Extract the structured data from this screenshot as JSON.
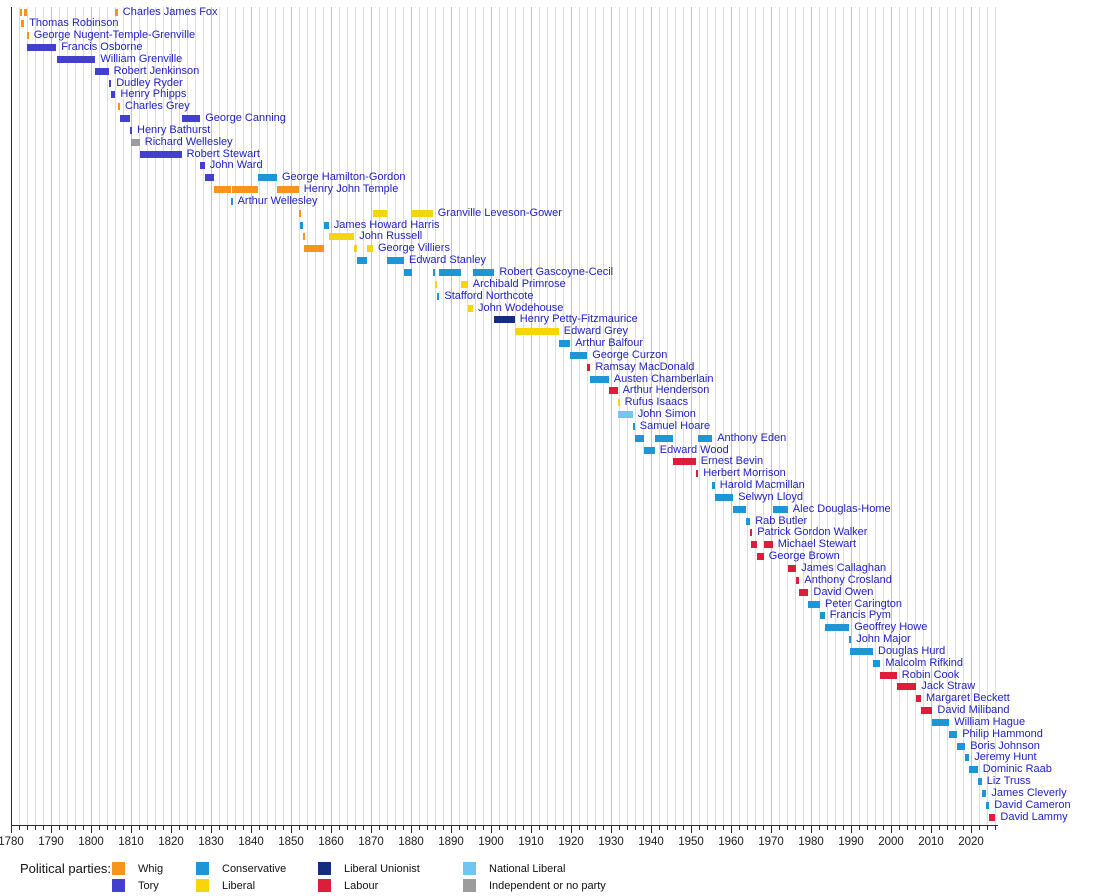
{
  "legend": {
    "heading": "Political parties:",
    "columns": [
      [
        {
          "party": "whig",
          "label": "Whig"
        },
        {
          "party": "tory",
          "label": "Tory"
        }
      ],
      [
        {
          "party": "conservative",
          "label": "Conservative"
        },
        {
          "party": "liberal",
          "label": "Liberal"
        }
      ],
      [
        {
          "party": "liberal_unionist",
          "label": "Liberal Unionist"
        },
        {
          "party": "labour",
          "label": "Labour"
        }
      ],
      [
        {
          "party": "national_liberal",
          "label": "National Liberal"
        },
        {
          "party": "independent",
          "label": "Independent or no party"
        }
      ]
    ]
  },
  "parties": {
    "whig": "#F7941E",
    "tory": "#4340D0",
    "conservative": "#1D96D6",
    "liberal": "#F6D60A",
    "liberal_unionist": "#142E7D",
    "labour": "#DC1E3C",
    "national_liberal": "#6FC6F2",
    "independent": "#9C9C9C"
  },
  "text_colors": {
    "person_label": "#2222BE",
    "axis_label": "#1A1A1A",
    "legend_label": "#111111"
  },
  "axis": {
    "start_year": 1780,
    "end_year": 2026.5,
    "minor_step": 2,
    "major_step": 10,
    "tick_labels": [
      "1780",
      "1790",
      "1800",
      "1810",
      "1820",
      "1830",
      "1840",
      "1850",
      "1860",
      "1870",
      "1880",
      "1890",
      "1900",
      "1910",
      "1920",
      "1930",
      "1940",
      "1950",
      "1960",
      "1970",
      "1980",
      "1990",
      "2000",
      "2010",
      "2020"
    ]
  },
  "chart_data": {
    "type": "timeline",
    "xlabel": "",
    "ylabel": "",
    "grid": "vertical, every 2 years, decades darker",
    "legend_position": "bottom",
    "terms_format": "[start_year, end_year, party_key]",
    "people": [
      {
        "name": "Charles James Fox",
        "terms": [
          [
            1782.2,
            1782.55,
            "whig"
          ],
          [
            1783.3,
            1783.95,
            "whig"
          ],
          [
            1806.1,
            1806.7,
            "whig"
          ]
        ]
      },
      {
        "name": "Thomas Robinson",
        "terms": [
          [
            1782.55,
            1783.3,
            "whig"
          ]
        ]
      },
      {
        "name": "George Nugent-Temple-Grenville",
        "terms": [
          [
            1783.93,
            1784.02,
            "whig"
          ]
        ]
      },
      {
        "name": "Francis Osborne",
        "terms": [
          [
            1783.98,
            1791.3,
            "tory"
          ]
        ]
      },
      {
        "name": "William Grenville",
        "terms": [
          [
            1791.45,
            1801.1,
            "tory"
          ]
        ]
      },
      {
        "name": "Robert Jenkinson",
        "terms": [
          [
            1801.1,
            1804.4,
            "tory"
          ]
        ]
      },
      {
        "name": "Dudley Ryder",
        "terms": [
          [
            1804.4,
            1805.05,
            "tory"
          ]
        ]
      },
      {
        "name": "Henry Phipps",
        "terms": [
          [
            1805.05,
            1806.1,
            "tory"
          ]
        ]
      },
      {
        "name": "Charles Grey",
        "terms": [
          [
            1806.7,
            1807.25,
            "whig"
          ]
        ]
      },
      {
        "name": "George Canning",
        "terms": [
          [
            1807.25,
            1809.75,
            "tory"
          ],
          [
            1822.7,
            1827.3,
            "tory"
          ]
        ]
      },
      {
        "name": "Henry Bathurst",
        "terms": [
          [
            1809.75,
            1809.95,
            "tory"
          ]
        ]
      },
      {
        "name": "Richard Wellesley",
        "terms": [
          [
            1809.95,
            1812.2,
            "independent"
          ]
        ]
      },
      {
        "name": "Robert Stewart",
        "terms": [
          [
            1812.2,
            1822.65,
            "tory"
          ]
        ]
      },
      {
        "name": "John Ward",
        "terms": [
          [
            1827.3,
            1828.45,
            "tory"
          ]
        ]
      },
      {
        "name": "George Hamilton-Gordon",
        "terms": [
          [
            1828.45,
            1830.85,
            "tory"
          ],
          [
            1841.7,
            1846.5,
            "conservative"
          ]
        ]
      },
      {
        "name": "Henry John Temple",
        "terms": [
          [
            1830.85,
            1834.9,
            "whig"
          ],
          [
            1835.3,
            1841.7,
            "whig"
          ],
          [
            1846.5,
            1851.95,
            "whig"
          ]
        ]
      },
      {
        "name": "Arthur Wellesley",
        "terms": [
          [
            1834.9,
            1835.3,
            "conservative"
          ]
        ]
      },
      {
        "name": "Granville Leveson-Gower",
        "terms": [
          [
            1851.95,
            1852.15,
            "whig"
          ],
          [
            1870.5,
            1874.1,
            "liberal"
          ],
          [
            1880.3,
            1885.45,
            "liberal"
          ]
        ]
      },
      {
        "name": "James Howard Harris",
        "terms": [
          [
            1852.15,
            1852.95,
            "conservative"
          ],
          [
            1858.15,
            1859.45,
            "conservative"
          ]
        ]
      },
      {
        "name": "John Russell",
        "terms": [
          [
            1852.95,
            1853.15,
            "whig"
          ],
          [
            1859.45,
            1865.8,
            "liberal"
          ]
        ]
      },
      {
        "name": "George Villiers",
        "terms": [
          [
            1853.15,
            1858.15,
            "whig"
          ],
          [
            1865.8,
            1866.5,
            "liberal"
          ],
          [
            1868.95,
            1870.5,
            "liberal"
          ]
        ]
      },
      {
        "name": "Edward Stanley",
        "terms": [
          [
            1866.5,
            1868.95,
            "conservative"
          ],
          [
            1874.1,
            1878.25,
            "conservative"
          ]
        ]
      },
      {
        "name": "Robert Gascoyne-Cecil",
        "terms": [
          [
            1878.25,
            1880.3,
            "conservative"
          ],
          [
            1885.45,
            1886.1,
            "conservative"
          ],
          [
            1887.05,
            1892.6,
            "conservative"
          ],
          [
            1895.5,
            1900.85,
            "conservative"
          ]
        ]
      },
      {
        "name": "Archibald Primrose",
        "terms": [
          [
            1886.1,
            1886.6,
            "liberal"
          ],
          [
            1892.6,
            1894.2,
            "liberal"
          ]
        ]
      },
      {
        "name": "Stafford Northcote",
        "terms": [
          [
            1886.6,
            1887.05,
            "conservative"
          ]
        ]
      },
      {
        "name": "John Wodehouse",
        "terms": [
          [
            1894.2,
            1895.5,
            "liberal"
          ]
        ]
      },
      {
        "name": "Henry Petty-Fitzmaurice",
        "terms": [
          [
            1900.85,
            1905.95,
            "liberal_unionist"
          ]
        ]
      },
      {
        "name": "Edward Grey",
        "terms": [
          [
            1905.95,
            1916.95,
            "liberal"
          ]
        ]
      },
      {
        "name": "Arthur Balfour",
        "terms": [
          [
            1916.95,
            1919.8,
            "conservative"
          ]
        ]
      },
      {
        "name": "George Curzon",
        "terms": [
          [
            1919.8,
            1924.05,
            "conservative"
          ]
        ]
      },
      {
        "name": "Ramsay MacDonald",
        "terms": [
          [
            1924.05,
            1924.85,
            "labour"
          ]
        ]
      },
      {
        "name": "Austen Chamberlain",
        "terms": [
          [
            1924.85,
            1929.45,
            "conservative"
          ]
        ]
      },
      {
        "name": "Arthur Henderson",
        "terms": [
          [
            1929.45,
            1931.65,
            "labour"
          ]
        ]
      },
      {
        "name": "Rufus Isaacs",
        "terms": [
          [
            1931.65,
            1931.85,
            "liberal"
          ]
        ]
      },
      {
        "name": "John Simon",
        "terms": [
          [
            1931.85,
            1935.45,
            "national_liberal"
          ]
        ]
      },
      {
        "name": "Samuel Hoare",
        "terms": [
          [
            1935.45,
            1935.95,
            "conservative"
          ]
        ]
      },
      {
        "name": "Anthony Eden",
        "terms": [
          [
            1935.95,
            1938.15,
            "conservative"
          ],
          [
            1940.95,
            1945.55,
            "conservative"
          ],
          [
            1951.8,
            1955.3,
            "conservative"
          ]
        ]
      },
      {
        "name": "Edward Wood",
        "terms": [
          [
            1938.15,
            1940.95,
            "conservative"
          ]
        ]
      },
      {
        "name": "Ernest Bevin",
        "terms": [
          [
            1945.55,
            1951.2,
            "labour"
          ]
        ]
      },
      {
        "name": "Herbert Morrison",
        "terms": [
          [
            1951.2,
            1951.8,
            "labour"
          ]
        ]
      },
      {
        "name": "Harold Macmillan",
        "terms": [
          [
            1955.3,
            1955.95,
            "conservative"
          ]
        ]
      },
      {
        "name": "Selwyn Lloyd",
        "terms": [
          [
            1955.95,
            1960.55,
            "conservative"
          ]
        ]
      },
      {
        "name": "Alec Douglas-Home",
        "terms": [
          [
            1960.55,
            1963.8,
            "conservative"
          ],
          [
            1970.45,
            1974.2,
            "conservative"
          ]
        ]
      },
      {
        "name": "Rab Butler",
        "terms": [
          [
            1963.8,
            1964.8,
            "conservative"
          ]
        ]
      },
      {
        "name": "Patrick Gordon Walker",
        "terms": [
          [
            1964.8,
            1965.05,
            "labour"
          ]
        ]
      },
      {
        "name": "Michael Stewart",
        "terms": [
          [
            1965.05,
            1966.6,
            "labour"
          ],
          [
            1968.2,
            1970.45,
            "labour"
          ]
        ]
      },
      {
        "name": "George Brown",
        "terms": [
          [
            1966.6,
            1968.2,
            "labour"
          ]
        ]
      },
      {
        "name": "James Callaghan",
        "terms": [
          [
            1974.2,
            1976.3,
            "labour"
          ]
        ]
      },
      {
        "name": "Anthony Crosland",
        "terms": [
          [
            1976.3,
            1977.1,
            "labour"
          ]
        ]
      },
      {
        "name": "David Owen",
        "terms": [
          [
            1977.1,
            1979.35,
            "labour"
          ]
        ]
      },
      {
        "name": "Peter Carington",
        "terms": [
          [
            1979.35,
            1982.25,
            "conservative"
          ]
        ]
      },
      {
        "name": "Francis Pym",
        "terms": [
          [
            1982.25,
            1983.45,
            "conservative"
          ]
        ]
      },
      {
        "name": "Geoffrey Howe",
        "terms": [
          [
            1983.45,
            1989.55,
            "conservative"
          ]
        ]
      },
      {
        "name": "John Major",
        "terms": [
          [
            1989.55,
            1989.8,
            "conservative"
          ]
        ]
      },
      {
        "name": "Douglas Hurd",
        "terms": [
          [
            1989.8,
            1995.5,
            "conservative"
          ]
        ]
      },
      {
        "name": "Malcolm Rifkind",
        "terms": [
          [
            1995.5,
            1997.35,
            "conservative"
          ]
        ]
      },
      {
        "name": "Robin Cook",
        "terms": [
          [
            1997.35,
            2001.45,
            "labour"
          ]
        ]
      },
      {
        "name": "Jack Straw",
        "terms": [
          [
            2001.45,
            2006.35,
            "labour"
          ]
        ]
      },
      {
        "name": "Margaret Beckett",
        "terms": [
          [
            2006.35,
            2007.5,
            "labour"
          ]
        ]
      },
      {
        "name": "David Miliband",
        "terms": [
          [
            2007.5,
            2010.35,
            "labour"
          ]
        ]
      },
      {
        "name": "William Hague",
        "terms": [
          [
            2010.35,
            2014.55,
            "conservative"
          ]
        ]
      },
      {
        "name": "Philip Hammond",
        "terms": [
          [
            2014.55,
            2016.55,
            "conservative"
          ]
        ]
      },
      {
        "name": "Boris Johnson",
        "terms": [
          [
            2016.55,
            2018.55,
            "conservative"
          ]
        ]
      },
      {
        "name": "Jeremy Hunt",
        "terms": [
          [
            2018.55,
            2019.55,
            "conservative"
          ]
        ]
      },
      {
        "name": "Dominic Raab",
        "terms": [
          [
            2019.55,
            2021.7,
            "conservative"
          ]
        ]
      },
      {
        "name": "Liz Truss",
        "terms": [
          [
            2021.7,
            2022.7,
            "conservative"
          ]
        ]
      },
      {
        "name": "James Cleverly",
        "terms": [
          [
            2022.7,
            2023.85,
            "conservative"
          ]
        ]
      },
      {
        "name": "David Cameron",
        "terms": [
          [
            2023.85,
            2024.55,
            "conservative"
          ]
        ]
      },
      {
        "name": "David Lammy",
        "terms": [
          [
            2024.55,
            2026.1,
            "labour"
          ]
        ]
      }
    ]
  }
}
